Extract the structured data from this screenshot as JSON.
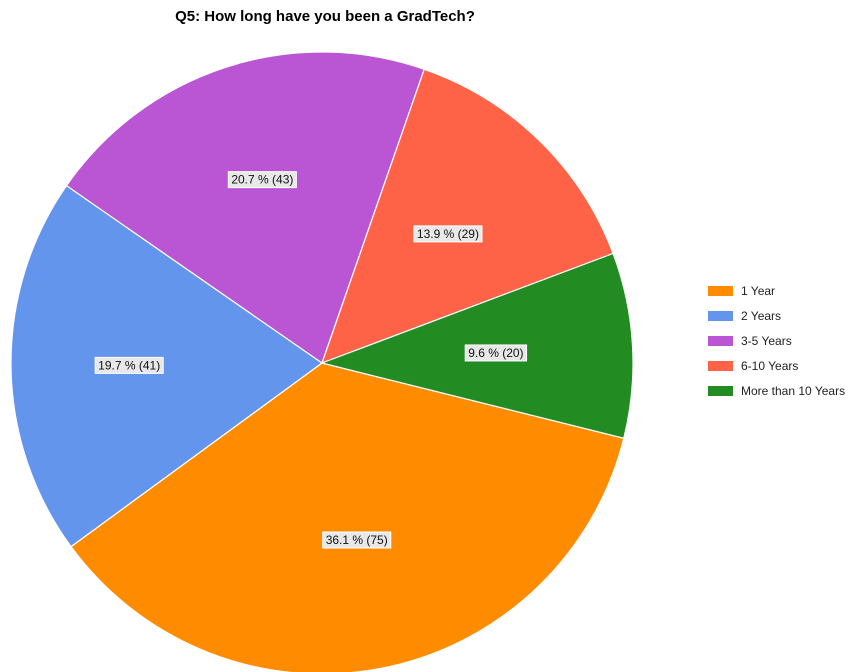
{
  "chart_data": {
    "type": "pie",
    "title": "Q5: How long have you been a GradTech?",
    "categories": [
      "1 Year",
      "2 Years",
      "3-5 Years",
      "6-10 Years",
      "More than 10 Years"
    ],
    "values": [
      75,
      41,
      43,
      29,
      20
    ],
    "percentages": [
      36.1,
      19.7,
      20.7,
      13.9,
      9.6
    ],
    "data_labels": [
      "36.1 % (75)",
      "19.7 % (41)",
      "20.7 % (43)",
      "13.9 % (29)",
      "9.6 % (20)"
    ],
    "colors": [
      "#ff8c00",
      "#6495ed",
      "#ba55d3",
      "#ff6347",
      "#228b22"
    ],
    "legend_position": "right"
  }
}
